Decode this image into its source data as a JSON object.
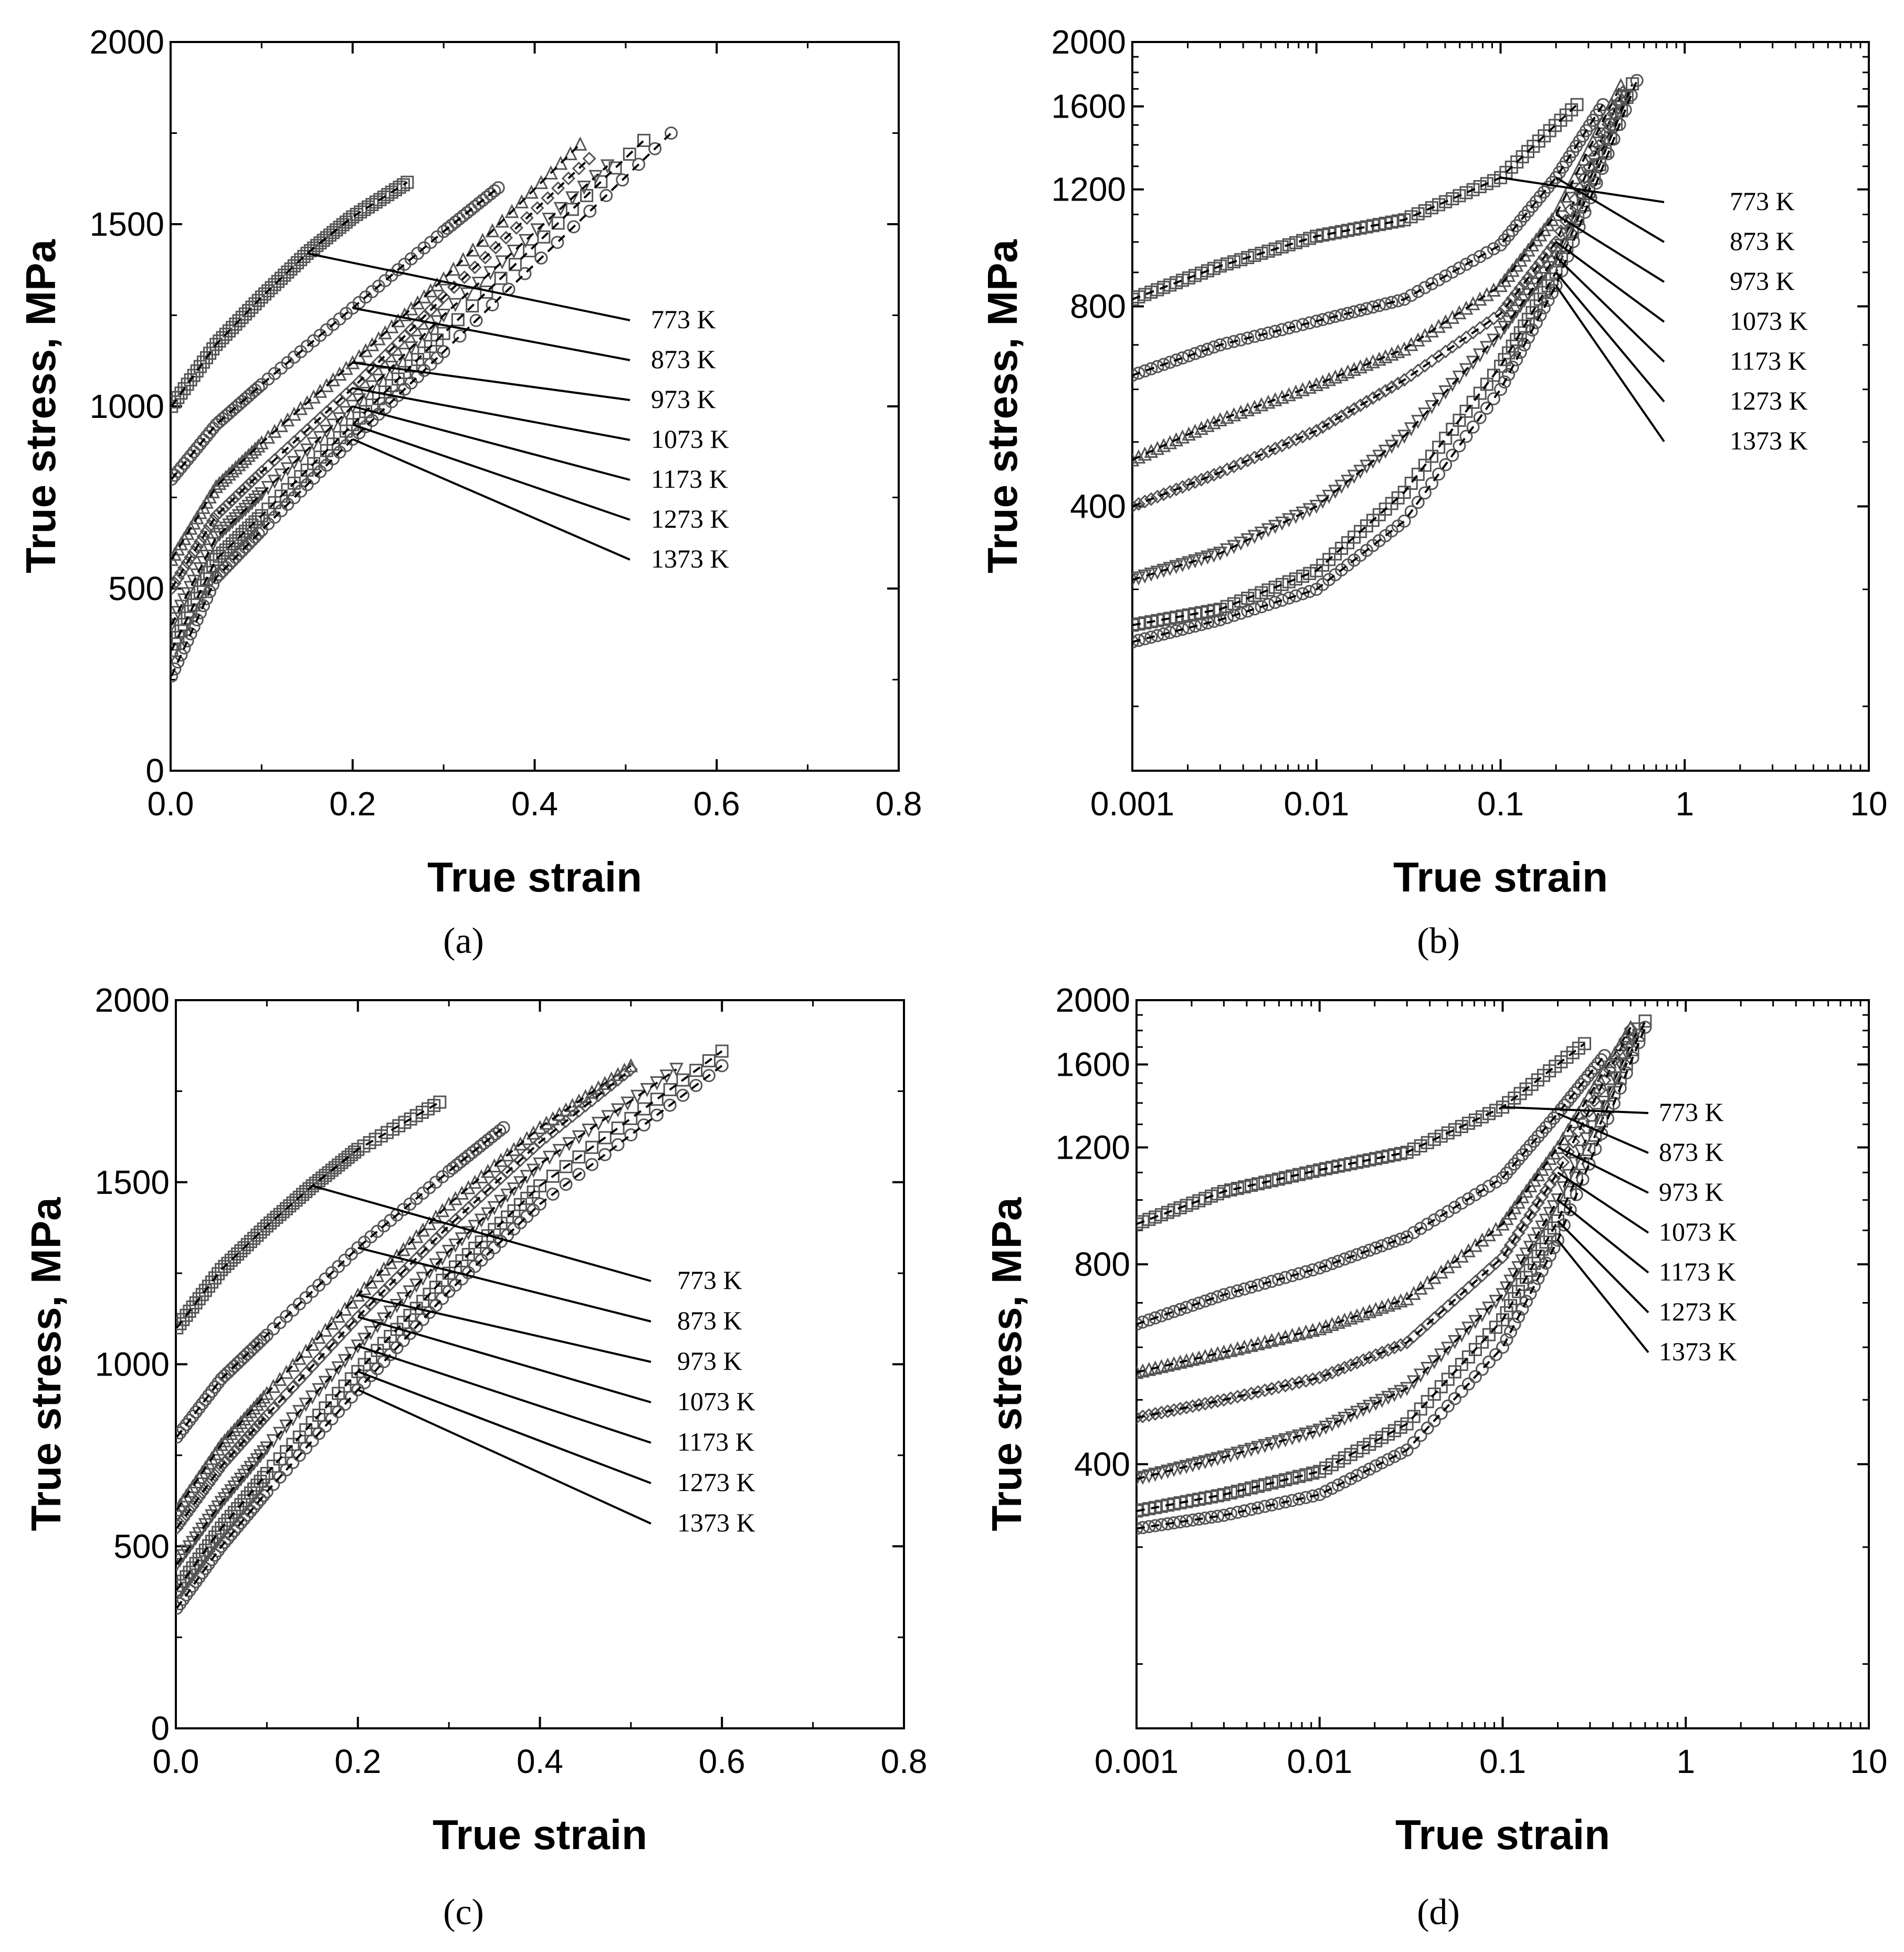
{
  "chart_data": [
    {
      "panel": "a",
      "caption": "(a)",
      "type": "scatter",
      "x_scale": "linear",
      "y_scale": "linear",
      "xlabel": "True strain",
      "ylabel": "True stress, MPa",
      "xlim": [
        0,
        0.8
      ],
      "ylim": [
        0,
        2000
      ],
      "xticks": [
        0.0,
        0.2,
        0.4,
        0.6,
        0.8
      ],
      "xtick_labels": [
        "0.0",
        "0.2",
        "0.4",
        "0.6",
        "0.8"
      ],
      "yticks": [
        0,
        500,
        1000,
        1500,
        2000
      ],
      "ytick_labels": [
        "0",
        "500",
        "1000",
        "1500",
        "2000"
      ],
      "series": [
        {
          "name": "773 K",
          "x": [
            0.001,
            0.05,
            0.1,
            0.15,
            0.2,
            0.26
          ],
          "y": [
            1000,
            1170,
            1300,
            1420,
            1520,
            1615
          ]
        },
        {
          "name": "873 K",
          "x": [
            0.001,
            0.05,
            0.1,
            0.2,
            0.3,
            0.36
          ],
          "y": [
            800,
            950,
            1060,
            1270,
            1480,
            1600
          ]
        },
        {
          "name": "973 K",
          "x": [
            0.001,
            0.05,
            0.1,
            0.2,
            0.3,
            0.45
          ],
          "y": [
            580,
            780,
            900,
            1120,
            1350,
            1720
          ]
        },
        {
          "name": "1073 K",
          "x": [
            0.001,
            0.05,
            0.1,
            0.2,
            0.3,
            0.46
          ],
          "y": [
            500,
            700,
            820,
            1050,
            1300,
            1680
          ]
        },
        {
          "name": "1173 K",
          "x": [
            0.001,
            0.05,
            0.1,
            0.2,
            0.3,
            0.48
          ],
          "y": [
            400,
            640,
            760,
            1000,
            1250,
            1660
          ]
        },
        {
          "name": "1273 K",
          "x": [
            0.001,
            0.05,
            0.1,
            0.2,
            0.3,
            0.52
          ],
          "y": [
            330,
            580,
            700,
            950,
            1200,
            1730
          ]
        },
        {
          "name": "1373 K",
          "x": [
            0.001,
            0.05,
            0.1,
            0.2,
            0.3,
            0.55
          ],
          "y": [
            260,
            530,
            660,
            910,
            1150,
            1750
          ]
        }
      ]
    },
    {
      "panel": "b",
      "caption": "(b)",
      "type": "scatter",
      "x_scale": "log",
      "y_scale": "log",
      "xlabel": "True strain",
      "ylabel": "True stress, MPa",
      "xlim": [
        0.001,
        10
      ],
      "ylim": [
        160,
        2000
      ],
      "xticks": [
        0.001,
        0.01,
        0.1,
        1,
        10
      ],
      "xtick_labels": [
        "0.001",
        "0.01",
        "0.1",
        "1",
        "10"
      ],
      "yticks": [
        400,
        800,
        1200,
        1600,
        2000
      ],
      "ytick_labels": [
        "400",
        "800",
        "1200",
        "1600",
        "2000"
      ],
      "series": [
        {
          "name": "773 K",
          "x": [
            0.001,
            0.003,
            0.01,
            0.03,
            0.1,
            0.26
          ],
          "y": [
            820,
            920,
            1020,
            1080,
            1250,
            1610
          ]
        },
        {
          "name": "873 K",
          "x": [
            0.001,
            0.003,
            0.01,
            0.03,
            0.1,
            0.2,
            0.36
          ],
          "y": [
            630,
            700,
            760,
            820,
            990,
            1250,
            1610
          ]
        },
        {
          "name": "973 K",
          "x": [
            0.001,
            0.003,
            0.01,
            0.03,
            0.1,
            0.2,
            0.45
          ],
          "y": [
            470,
            540,
            610,
            690,
            860,
            1100,
            1720
          ]
        },
        {
          "name": "1073 K",
          "x": [
            0.001,
            0.003,
            0.01,
            0.03,
            0.1,
            0.2,
            0.46
          ],
          "y": [
            400,
            450,
            520,
            620,
            780,
            1000,
            1680
          ]
        },
        {
          "name": "1173 K",
          "x": [
            0.001,
            0.003,
            0.01,
            0.03,
            0.1,
            0.2,
            0.48
          ],
          "y": [
            310,
            340,
            400,
            510,
            730,
            950,
            1660
          ]
        },
        {
          "name": "1273 K",
          "x": [
            0.001,
            0.003,
            0.01,
            0.03,
            0.1,
            0.2,
            0.52
          ],
          "y": [
            265,
            280,
            320,
            420,
            650,
            900,
            1730
          ]
        },
        {
          "name": "1373 K",
          "x": [
            0.001,
            0.003,
            0.01,
            0.03,
            0.1,
            0.2,
            0.55
          ],
          "y": [
            250,
            270,
            300,
            380,
            600,
            860,
            1750
          ]
        }
      ]
    },
    {
      "panel": "c",
      "caption": "(c)",
      "type": "scatter",
      "x_scale": "linear",
      "y_scale": "linear",
      "xlabel": "True strain",
      "ylabel": "True stress, MPa",
      "xlim": [
        0,
        0.8
      ],
      "ylim": [
        0,
        2000
      ],
      "xticks": [
        0.0,
        0.2,
        0.4,
        0.6,
        0.8
      ],
      "xtick_labels": [
        "0.0",
        "0.2",
        "0.4",
        "0.6",
        "0.8"
      ],
      "yticks": [
        0,
        500,
        1000,
        1500,
        2000
      ],
      "ytick_labels": [
        "0",
        "500",
        "1000",
        "1500",
        "2000"
      ],
      "series": [
        {
          "name": "773 K",
          "x": [
            0.001,
            0.05,
            0.1,
            0.15,
            0.2,
            0.29
          ],
          "y": [
            1100,
            1260,
            1380,
            1490,
            1590,
            1720
          ]
        },
        {
          "name": "873 K",
          "x": [
            0.001,
            0.05,
            0.1,
            0.2,
            0.3,
            0.36
          ],
          "y": [
            800,
            960,
            1080,
            1320,
            1530,
            1650
          ]
        },
        {
          "name": "973 K",
          "x": [
            0.001,
            0.05,
            0.1,
            0.2,
            0.3,
            0.4,
            0.5
          ],
          "y": [
            600,
            780,
            920,
            1190,
            1440,
            1650,
            1820
          ]
        },
        {
          "name": "1073 K",
          "x": [
            0.001,
            0.05,
            0.1,
            0.2,
            0.3,
            0.4,
            0.5
          ],
          "y": [
            550,
            720,
            860,
            1130,
            1380,
            1610,
            1810
          ]
        },
        {
          "name": "1173 K",
          "x": [
            0.001,
            0.05,
            0.1,
            0.2,
            0.3,
            0.4,
            0.55
          ],
          "y": [
            450,
            620,
            770,
            1050,
            1310,
            1550,
            1810
          ]
        },
        {
          "name": "1273 K",
          "x": [
            0.001,
            0.05,
            0.1,
            0.2,
            0.3,
            0.4,
            0.6
          ],
          "y": [
            380,
            550,
            700,
            980,
            1250,
            1490,
            1860
          ]
        },
        {
          "name": "1373 K",
          "x": [
            0.001,
            0.05,
            0.1,
            0.2,
            0.3,
            0.4,
            0.6
          ],
          "y": [
            330,
            500,
            650,
            930,
            1200,
            1440,
            1820
          ]
        }
      ]
    },
    {
      "panel": "d",
      "caption": "(d)",
      "type": "scatter",
      "x_scale": "log",
      "y_scale": "log",
      "xlabel": "True strain",
      "ylabel": "True stress, MPa",
      "xlim": [
        0.001,
        10
      ],
      "ylim": [
        160,
        2000
      ],
      "xticks": [
        0.001,
        0.01,
        0.1,
        1,
        10
      ],
      "xtick_labels": [
        "0.001",
        "0.01",
        "0.1",
        "1",
        "10"
      ],
      "yticks": [
        400,
        800,
        1200,
        1600,
        2000
      ],
      "ytick_labels": [
        "400",
        "800",
        "1200",
        "1600",
        "2000"
      ],
      "series": [
        {
          "name": "773 K",
          "x": [
            0.001,
            0.003,
            0.01,
            0.03,
            0.1,
            0.28
          ],
          "y": [
            920,
            1030,
            1110,
            1180,
            1380,
            1720
          ]
        },
        {
          "name": "873 K",
          "x": [
            0.001,
            0.003,
            0.01,
            0.03,
            0.1,
            0.2,
            0.36
          ],
          "y": [
            650,
            720,
            790,
            880,
            1080,
            1350,
            1650
          ]
        },
        {
          "name": "973 K",
          "x": [
            0.001,
            0.003,
            0.01,
            0.03,
            0.1,
            0.2,
            0.5
          ],
          "y": [
            550,
            590,
            640,
            710,
            920,
            1200,
            1820
          ]
        },
        {
          "name": "1073 K",
          "x": [
            0.001,
            0.003,
            0.01,
            0.03,
            0.1,
            0.2,
            0.5
          ],
          "y": [
            470,
            500,
            540,
            610,
            820,
            1100,
            1810
          ]
        },
        {
          "name": "1173 K",
          "x": [
            0.001,
            0.003,
            0.01,
            0.03,
            0.1,
            0.2,
            0.55
          ],
          "y": [
            380,
            410,
            450,
            520,
            720,
            1000,
            1810
          ]
        },
        {
          "name": "1273 K",
          "x": [
            0.001,
            0.003,
            0.01,
            0.03,
            0.1,
            0.2,
            0.6
          ],
          "y": [
            340,
            360,
            390,
            460,
            660,
            930,
            1860
          ]
        },
        {
          "name": "1373 K",
          "x": [
            0.001,
            0.003,
            0.01,
            0.03,
            0.1,
            0.2,
            0.6
          ],
          "y": [
            320,
            335,
            360,
            420,
            600,
            870,
            1820
          ]
        }
      ]
    }
  ]
}
